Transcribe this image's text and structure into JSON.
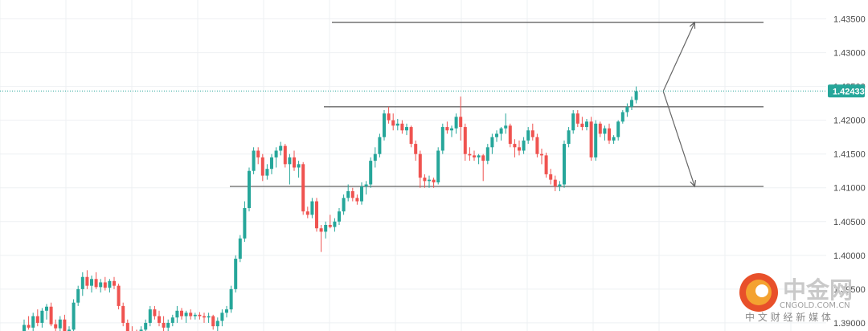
{
  "chart_data": {
    "type": "candlestick",
    "ylim": [
      1.3888,
      1.4378
    ],
    "yticks": [
      "1.43500",
      "1.43000",
      "1.42500",
      "1.42000",
      "1.41500",
      "1.41000",
      "1.40500",
      "1.40000",
      "1.39500",
      "1.39000"
    ],
    "last_price": "1.42433",
    "levels": [
      1.4345,
      1.422,
      1.4102
    ],
    "colors": {
      "up": "#26a69a",
      "down": "#ef5350",
      "grid": "#eef0f3",
      "price_tag": "#26a69a"
    },
    "candles": [
      [
        1.3885,
        1.3905,
        1.3882,
        1.3897
      ],
      [
        1.3897,
        1.391,
        1.389,
        1.3893
      ],
      [
        1.3893,
        1.3915,
        1.3888,
        1.391
      ],
      [
        1.391,
        1.392,
        1.3895,
        1.39
      ],
      [
        1.39,
        1.3922,
        1.3893,
        1.3918
      ],
      [
        1.3918,
        1.3928,
        1.3905,
        1.3924
      ],
      [
        1.3924,
        1.393,
        1.3895,
        1.3898
      ],
      [
        1.3898,
        1.3905,
        1.3882,
        1.3892
      ],
      [
        1.3892,
        1.391,
        1.3885,
        1.3905
      ],
      [
        1.3905,
        1.3912,
        1.388,
        1.3885
      ],
      [
        1.3885,
        1.3895,
        1.3878,
        1.389
      ],
      [
        1.389,
        1.3935,
        1.3885,
        1.393
      ],
      [
        1.393,
        1.3955,
        1.3925,
        1.395
      ],
      [
        1.395,
        1.3975,
        1.394,
        1.3968
      ],
      [
        1.3968,
        1.3978,
        1.395,
        1.3955
      ],
      [
        1.3955,
        1.397,
        1.3945,
        1.3965
      ],
      [
        1.3965,
        1.3975,
        1.395,
        1.3953
      ],
      [
        1.3953,
        1.3965,
        1.3945,
        1.396
      ],
      [
        1.396,
        1.3968,
        1.3948,
        1.3952
      ],
      [
        1.3952,
        1.3965,
        1.3945,
        1.3962
      ],
      [
        1.3962,
        1.3968,
        1.395,
        1.3955
      ],
      [
        1.3955,
        1.3958,
        1.392,
        1.3925
      ],
      [
        1.3925,
        1.393,
        1.3895,
        1.39
      ],
      [
        1.39,
        1.3905,
        1.3882,
        1.3888
      ],
      [
        1.3888,
        1.3895,
        1.3878,
        1.3885
      ],
      [
        1.3885,
        1.389,
        1.3875,
        1.388
      ],
      [
        1.388,
        1.3895,
        1.3875,
        1.389
      ],
      [
        1.389,
        1.3905,
        1.3885,
        1.39
      ],
      [
        1.39,
        1.3925,
        1.3895,
        1.392
      ],
      [
        1.392,
        1.3925,
        1.3905,
        1.391
      ],
      [
        1.391,
        1.3918,
        1.3895,
        1.39
      ],
      [
        1.39,
        1.391,
        1.3888,
        1.3893
      ],
      [
        1.3893,
        1.3905,
        1.3885,
        1.39
      ],
      [
        1.39,
        1.3912,
        1.3895,
        1.3908
      ],
      [
        1.3908,
        1.3925,
        1.39,
        1.3918
      ],
      [
        1.3918,
        1.3922,
        1.3905,
        1.391
      ],
      [
        1.391,
        1.3918,
        1.39,
        1.3915
      ],
      [
        1.3915,
        1.392,
        1.3905,
        1.391
      ],
      [
        1.391,
        1.3915,
        1.3905,
        1.3912
      ],
      [
        1.3912,
        1.3916,
        1.3905,
        1.391
      ],
      [
        1.391,
        1.3915,
        1.39,
        1.3908
      ],
      [
        1.3908,
        1.3915,
        1.39,
        1.391
      ],
      [
        1.391,
        1.3912,
        1.389,
        1.3895
      ],
      [
        1.3895,
        1.3908,
        1.3885,
        1.3903
      ],
      [
        1.3903,
        1.392,
        1.3895,
        1.3915
      ],
      [
        1.3915,
        1.3925,
        1.3908,
        1.392
      ],
      [
        1.392,
        1.3955,
        1.3915,
        1.395
      ],
      [
        1.395,
        1.4,
        1.3945,
        1.3995
      ],
      [
        1.3995,
        1.403,
        1.399,
        1.4025
      ],
      [
        1.4025,
        1.408,
        1.402,
        1.407
      ],
      [
        1.407,
        1.413,
        1.4065,
        1.4125
      ],
      [
        1.4125,
        1.416,
        1.412,
        1.4155
      ],
      [
        1.4155,
        1.416,
        1.4135,
        1.4145
      ],
      [
        1.4145,
        1.415,
        1.411,
        1.4118
      ],
      [
        1.4118,
        1.4135,
        1.4112,
        1.4128
      ],
      [
        1.4128,
        1.415,
        1.412,
        1.4145
      ],
      [
        1.4145,
        1.416,
        1.413,
        1.4155
      ],
      [
        1.4155,
        1.4168,
        1.4148,
        1.4162
      ],
      [
        1.4162,
        1.4165,
        1.413,
        1.4135
      ],
      [
        1.4135,
        1.415,
        1.4105,
        1.4145
      ],
      [
        1.4145,
        1.4155,
        1.4125,
        1.413
      ],
      [
        1.413,
        1.414,
        1.4115,
        1.4135
      ],
      [
        1.4135,
        1.4138,
        1.406,
        1.4065
      ],
      [
        1.4065,
        1.4072,
        1.4055,
        1.406
      ],
      [
        1.406,
        1.4085,
        1.4055,
        1.408
      ],
      [
        1.408,
        1.4085,
        1.4035,
        1.404
      ],
      [
        1.404,
        1.4045,
        1.4005,
        1.4035
      ],
      [
        1.4035,
        1.405,
        1.4025,
        1.4045
      ],
      [
        1.4045,
        1.406,
        1.404,
        1.4042
      ],
      [
        1.4042,
        1.4055,
        1.4035,
        1.405
      ],
      [
        1.405,
        1.407,
        1.4045,
        1.4065
      ],
      [
        1.4065,
        1.409,
        1.406,
        1.4085
      ],
      [
        1.4085,
        1.4105,
        1.408,
        1.4095
      ],
      [
        1.4095,
        1.41,
        1.408,
        1.4085
      ],
      [
        1.4085,
        1.409,
        1.4075,
        1.408
      ],
      [
        1.408,
        1.4108,
        1.4075,
        1.4102
      ],
      [
        1.4102,
        1.411,
        1.409,
        1.4105
      ],
      [
        1.4105,
        1.4145,
        1.41,
        1.414
      ],
      [
        1.414,
        1.416,
        1.413,
        1.415
      ],
      [
        1.415,
        1.418,
        1.4145,
        1.4175
      ],
      [
        1.4175,
        1.4215,
        1.417,
        1.421
      ],
      [
        1.421,
        1.422,
        1.4195,
        1.42
      ],
      [
        1.42,
        1.421,
        1.4185,
        1.4192
      ],
      [
        1.4192,
        1.4202,
        1.4185,
        1.4195
      ],
      [
        1.4195,
        1.42,
        1.418,
        1.4185
      ],
      [
        1.4185,
        1.4195,
        1.4178,
        1.419
      ],
      [
        1.419,
        1.4192,
        1.416,
        1.4165
      ],
      [
        1.4165,
        1.417,
        1.414,
        1.415
      ],
      [
        1.415,
        1.4155,
        1.41,
        1.4115
      ],
      [
        1.4115,
        1.412,
        1.41,
        1.411
      ],
      [
        1.411,
        1.4118,
        1.41,
        1.4112
      ],
      [
        1.4112,
        1.4115,
        1.41,
        1.4108
      ],
      [
        1.4108,
        1.416,
        1.4105,
        1.4155
      ],
      [
        1.4155,
        1.4195,
        1.415,
        1.419
      ],
      [
        1.419,
        1.4198,
        1.418,
        1.4185
      ],
      [
        1.4185,
        1.4192,
        1.4175,
        1.4188
      ],
      [
        1.4188,
        1.421,
        1.418,
        1.4205
      ],
      [
        1.4205,
        1.4235,
        1.417,
        1.419
      ],
      [
        1.419,
        1.4195,
        1.414,
        1.415
      ],
      [
        1.415,
        1.416,
        1.414,
        1.4148
      ],
      [
        1.4148,
        1.4155,
        1.414,
        1.4145
      ],
      [
        1.4145,
        1.415,
        1.4135,
        1.4148
      ],
      [
        1.4148,
        1.415,
        1.411,
        1.414
      ],
      [
        1.414,
        1.4165,
        1.4135,
        1.416
      ],
      [
        1.416,
        1.418,
        1.415,
        1.4175
      ],
      [
        1.4175,
        1.4185,
        1.4168,
        1.418
      ],
      [
        1.418,
        1.419,
        1.417,
        1.4188
      ],
      [
        1.4188,
        1.421,
        1.418,
        1.4192
      ],
      [
        1.4192,
        1.4195,
        1.416,
        1.4165
      ],
      [
        1.4165,
        1.4172,
        1.4145,
        1.416
      ],
      [
        1.416,
        1.417,
        1.4148,
        1.4155
      ],
      [
        1.4155,
        1.4175,
        1.415,
        1.417
      ],
      [
        1.417,
        1.419,
        1.4165,
        1.4185
      ],
      [
        1.4185,
        1.4195,
        1.417,
        1.4175
      ],
      [
        1.4175,
        1.418,
        1.4145,
        1.415
      ],
      [
        1.415,
        1.4158,
        1.4135,
        1.4148
      ],
      [
        1.4148,
        1.4152,
        1.4115,
        1.412
      ],
      [
        1.412,
        1.4128,
        1.4105,
        1.4112
      ],
      [
        1.4112,
        1.4118,
        1.4095,
        1.4102
      ],
      [
        1.4102,
        1.411,
        1.4095,
        1.4105
      ],
      [
        1.4105,
        1.417,
        1.41,
        1.4165
      ],
      [
        1.4165,
        1.419,
        1.416,
        1.4185
      ],
      [
        1.4185,
        1.4215,
        1.418,
        1.421
      ],
      [
        1.421,
        1.4215,
        1.419,
        1.4195
      ],
      [
        1.4195,
        1.4205,
        1.4185,
        1.419
      ],
      [
        1.419,
        1.4202,
        1.4185,
        1.4198
      ],
      [
        1.4198,
        1.4205,
        1.414,
        1.4145
      ],
      [
        1.4145,
        1.42,
        1.414,
        1.4195
      ],
      [
        1.4195,
        1.4198,
        1.4175,
        1.418
      ],
      [
        1.418,
        1.4192,
        1.417,
        1.4188
      ],
      [
        1.4188,
        1.4195,
        1.4165,
        1.417
      ],
      [
        1.417,
        1.4178,
        1.4165,
        1.4175
      ],
      [
        1.4175,
        1.42,
        1.417,
        1.4198
      ],
      [
        1.4198,
        1.4215,
        1.4195,
        1.4212
      ],
      [
        1.4212,
        1.4225,
        1.4205,
        1.422
      ],
      [
        1.422,
        1.4235,
        1.4215,
        1.423
      ],
      [
        1.423,
        1.425,
        1.4225,
        1.4243
      ]
    ],
    "arrows": [
      {
        "from": [
          142,
          1.4243
        ],
        "to": [
          149,
          1.4345
        ]
      },
      {
        "from": [
          142,
          1.4243
        ],
        "to": [
          149,
          1.4102
        ]
      }
    ]
  },
  "watermark": {
    "brand": "中金网",
    "domain": "CNGOLD.COM.CN",
    "tagline": "中 文 财 经 新 媒 体"
  }
}
